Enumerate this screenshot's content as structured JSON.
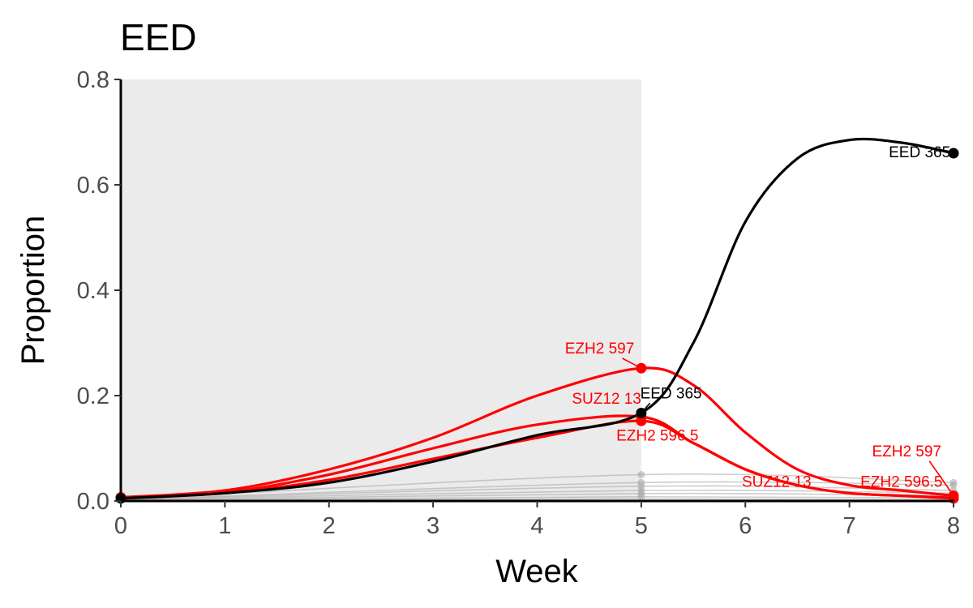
{
  "chart_data": {
    "type": "line",
    "title": "EED",
    "xlabel": "Week",
    "ylabel": "Proportion",
    "xlim": [
      0,
      8
    ],
    "ylim": [
      0,
      0.8
    ],
    "x_ticks": [
      "0",
      "1",
      "2",
      "3",
      "4",
      "5",
      "6",
      "7",
      "8"
    ],
    "y_ticks": [
      "0.0",
      "0.2",
      "0.4",
      "0.6",
      "0.8"
    ],
    "shaded_region": {
      "x_from": 0,
      "x_to": 5,
      "color": "#ebebeb"
    },
    "colors": {
      "highlight": "#000000",
      "related": "#ff0000",
      "background": "#a6a6a6"
    },
    "series": [
      {
        "group": "background",
        "x": [
          0,
          5,
          8
        ],
        "y": [
          0.003,
          0.05,
          0.035
        ]
      },
      {
        "group": "background",
        "x": [
          0,
          5,
          8
        ],
        "y": [
          0.002,
          0.035,
          0.03
        ]
      },
      {
        "group": "background",
        "x": [
          0,
          5,
          8
        ],
        "y": [
          0.002,
          0.028,
          0.02
        ]
      },
      {
        "group": "background",
        "x": [
          0,
          5,
          8
        ],
        "y": [
          0.002,
          0.02,
          0.015
        ]
      },
      {
        "group": "background",
        "x": [
          0,
          5,
          8
        ],
        "y": [
          0.001,
          0.014,
          0.01
        ]
      },
      {
        "group": "background",
        "x": [
          0,
          5,
          8
        ],
        "y": [
          0.001,
          0.008,
          0.006
        ]
      },
      {
        "group": "background",
        "x": [
          0,
          5,
          8
        ],
        "y": [
          0.001,
          0.004,
          0.003
        ]
      },
      {
        "group": "related",
        "label": "EZH2 597",
        "x": [
          0,
          1,
          2,
          3,
          4,
          5,
          5.5,
          6,
          6.5,
          7,
          7.5,
          8
        ],
        "y": [
          0.007,
          0.02,
          0.06,
          0.12,
          0.2,
          0.252,
          0.22,
          0.13,
          0.06,
          0.03,
          0.02,
          0.01
        ]
      },
      {
        "group": "related",
        "label": "SUZ12 13",
        "x": [
          0,
          1,
          2,
          3,
          4,
          5,
          5.5,
          6,
          6.5,
          7,
          7.5,
          8
        ],
        "y": [
          0.006,
          0.016,
          0.05,
          0.1,
          0.145,
          0.16,
          0.11,
          0.06,
          0.03,
          0.015,
          0.01,
          0.005
        ]
      },
      {
        "group": "related",
        "label": "EZH2 596.5",
        "x": [
          0,
          1,
          2,
          3,
          4,
          5,
          5.5,
          6,
          6.5,
          7,
          7.5,
          8
        ],
        "y": [
          0.005,
          0.015,
          0.04,
          0.08,
          0.12,
          0.152,
          0.11,
          0.06,
          0.03,
          0.015,
          0.01,
          0.006
        ]
      },
      {
        "group": "highlight",
        "label": "EED 365",
        "x": [
          0,
          1,
          2,
          3,
          4,
          5,
          5.5,
          6,
          6.5,
          7,
          7.5,
          8
        ],
        "y": [
          0.005,
          0.015,
          0.035,
          0.075,
          0.125,
          0.167,
          0.3,
          0.53,
          0.65,
          0.685,
          0.68,
          0.66
        ]
      }
    ],
    "points": [
      {
        "group": "background",
        "x": 5,
        "y": 0.05
      },
      {
        "group": "background",
        "x": 5,
        "y": 0.035
      },
      {
        "group": "background",
        "x": 5,
        "y": 0.028
      },
      {
        "group": "background",
        "x": 5,
        "y": 0.02
      },
      {
        "group": "background",
        "x": 5,
        "y": 0.014
      },
      {
        "group": "background",
        "x": 5,
        "y": 0.008
      },
      {
        "group": "background",
        "x": 8,
        "y": 0.035
      },
      {
        "group": "background",
        "x": 8,
        "y": 0.03
      },
      {
        "group": "background",
        "x": 8,
        "y": 0.02
      },
      {
        "group": "related",
        "x": 0,
        "y": 0.007
      },
      {
        "group": "related",
        "x": 5,
        "y": 0.252
      },
      {
        "group": "related",
        "x": 5,
        "y": 0.16
      },
      {
        "group": "related",
        "x": 5,
        "y": 0.152
      },
      {
        "group": "related",
        "x": 8,
        "y": 0.01
      },
      {
        "group": "related",
        "x": 8,
        "y": 0.005
      },
      {
        "group": "highlight",
        "x": 0,
        "y": 0.005
      },
      {
        "group": "highlight",
        "x": 5,
        "y": 0.167
      },
      {
        "group": "highlight",
        "x": 8,
        "y": 0.66
      }
    ],
    "annotations": [
      {
        "text": "EZH2 597",
        "group": "related",
        "x": 4.6,
        "y": 0.28,
        "anchor": "middle",
        "lead_to": [
          5,
          0.252
        ]
      },
      {
        "text": "SUZ12 13",
        "group": "related",
        "x": 5.0,
        "y": 0.185,
        "anchor": "end",
        "lead_to": null
      },
      {
        "text": "EED 365",
        "group": "highlight",
        "x": 4.99,
        "y": 0.195,
        "anchor": "start",
        "lead_to": [
          5,
          0.167
        ]
      },
      {
        "text": "EZH2 596.5",
        "group": "related",
        "x": 5.55,
        "y": 0.115,
        "anchor": "end",
        "lead_to": null
      },
      {
        "text": "EED 365",
        "group": "highlight",
        "x": 7.97,
        "y": 0.652,
        "anchor": "end",
        "lead_to": null
      },
      {
        "text": "EZH2 597",
        "group": "related",
        "x": 7.55,
        "y": 0.085,
        "anchor": "middle",
        "lead_to": [
          8,
          0.01
        ]
      },
      {
        "text": "SUZ12 13",
        "group": "related",
        "x": 6.3,
        "y": 0.027,
        "anchor": "middle",
        "lead_to": null
      },
      {
        "text": "EZH2 596.5",
        "group": "related",
        "x": 7.5,
        "y": 0.027,
        "anchor": "middle",
        "lead_to": null
      }
    ]
  }
}
